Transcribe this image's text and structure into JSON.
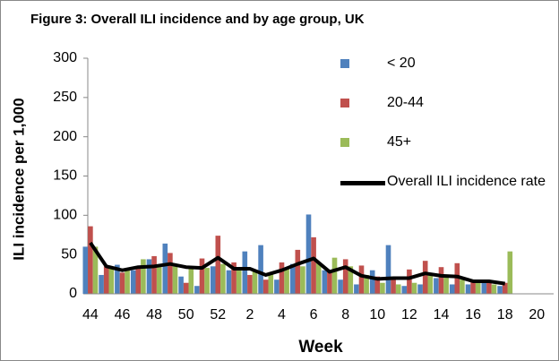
{
  "chart_data": {
    "type": "bar",
    "title": "Figure 3: Overall ILI incidence and by age group, UK",
    "x_label": "Week",
    "y_label": "ILI incidence per 1,000",
    "categories": [
      "44",
      null,
      "46",
      null,
      "48",
      null,
      "50",
      null,
      "52",
      null,
      "2",
      null,
      "4",
      null,
      "6",
      null,
      "8",
      null,
      "10",
      null,
      "12",
      null,
      "14",
      null,
      "16",
      null,
      "18",
      null,
      "20"
    ],
    "ylim": [
      0,
      300
    ],
    "yticks": [
      0,
      50,
      100,
      150,
      200,
      250,
      300
    ],
    "grid": false,
    "legend": "upper right",
    "series": [
      {
        "name": "< 20",
        "type": "bar",
        "color": "#4f81bd",
        "values": [
          60,
          24,
          37,
          30,
          44,
          64,
          22,
          10,
          35,
          30,
          54,
          62,
          18,
          38,
          101,
          30,
          18,
          12,
          30,
          62,
          10,
          12,
          20,
          12,
          12,
          16,
          10,
          null,
          null
        ]
      },
      {
        "name": "20-44",
        "type": "bar",
        "color": "#c0504d",
        "values": [
          86,
          35,
          27,
          33,
          48,
          52,
          14,
          45,
          74,
          40,
          24,
          18,
          40,
          56,
          72,
          30,
          44,
          36,
          22,
          20,
          31,
          42,
          34,
          39,
          18,
          16,
          14,
          null,
          null
        ]
      },
      {
        "name": "45+",
        "type": "bar",
        "color": "#9bbb59",
        "values": [
          60,
          33,
          30,
          44,
          36,
          38,
          33,
          33,
          38,
          30,
          30,
          25,
          33,
          35,
          40,
          46,
          35,
          24,
          14,
          12,
          14,
          24,
          22,
          18,
          14,
          12,
          54,
          null,
          null
        ]
      },
      {
        "name": "Overall ILI incidence rate",
        "type": "line",
        "color": "#000000",
        "values": [
          65,
          35,
          30,
          34,
          35,
          38,
          34,
          33,
          46,
          32,
          32,
          24,
          30,
          38,
          45,
          28,
          34,
          23,
          19,
          20,
          20,
          26,
          23,
          22,
          16,
          16,
          13,
          null,
          null
        ]
      }
    ]
  }
}
